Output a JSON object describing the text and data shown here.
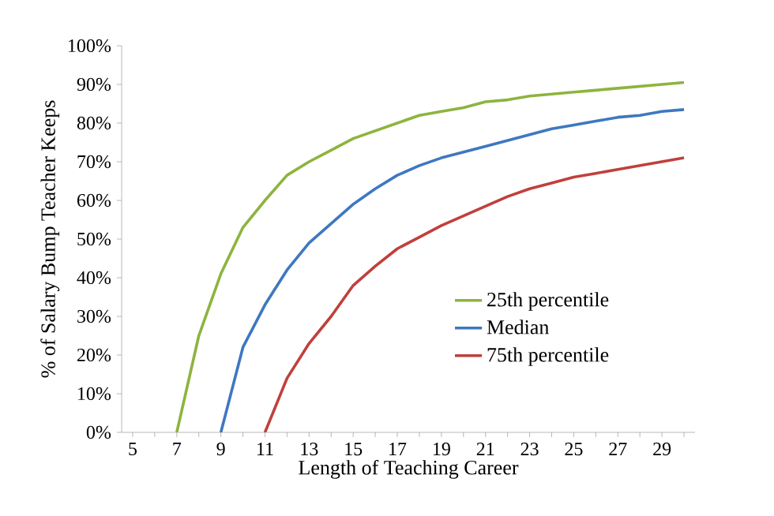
{
  "chart_data": {
    "type": "line",
    "xlabel": "Length of Teaching Career",
    "ylabel": "% of Salary Bump Teacher Keeps",
    "categories": [
      "5",
      null,
      "7",
      null,
      "9",
      null,
      "11",
      null,
      "13",
      null,
      "15",
      null,
      "17",
      null,
      "19",
      null,
      "21",
      null,
      "23",
      null,
      "25",
      null,
      "27",
      null,
      "29",
      null
    ],
    "series": [
      {
        "name": "25th percentile",
        "color": "#8db43e",
        "values": [
          null,
          null,
          0,
          25,
          41,
          53,
          60,
          66.5,
          70,
          73,
          76,
          78,
          80,
          82,
          83,
          84,
          85.5,
          86,
          87,
          87.5,
          88,
          88.5,
          89,
          89.5,
          90,
          90.5
        ]
      },
      {
        "name": "Median",
        "color": "#3e78c0",
        "values": [
          null,
          null,
          null,
          null,
          0,
          22,
          33,
          42,
          49,
          54,
          59,
          63,
          66.5,
          69,
          71,
          72.5,
          74,
          75.5,
          77,
          78.5,
          79.5,
          80.5,
          81.5,
          82,
          83,
          83.5
        ]
      },
      {
        "name": "75th percentile",
        "color": "#c0403c",
        "values": [
          null,
          null,
          null,
          null,
          null,
          null,
          0,
          14,
          23,
          30,
          38,
          43,
          47.5,
          50.5,
          53.5,
          56,
          58.5,
          61,
          63,
          64.5,
          66,
          67,
          68,
          69,
          70,
          71
        ]
      }
    ],
    "ylim": [
      0,
      100
    ],
    "yticks": [
      {
        "value": 0,
        "label": "0%"
      },
      {
        "value": 10,
        "label": "10%"
      },
      {
        "value": 20,
        "label": "20%"
      },
      {
        "value": 30,
        "label": "30%"
      },
      {
        "value": 40,
        "label": "40%"
      },
      {
        "value": 50,
        "label": "50%"
      },
      {
        "value": 60,
        "label": "60%"
      },
      {
        "value": 70,
        "label": "70%"
      },
      {
        "value": 80,
        "label": "80%"
      },
      {
        "value": 90,
        "label": "90%"
      },
      {
        "value": 100,
        "label": "100%"
      }
    ],
    "grid": false,
    "legend": "bottom right",
    "marker": "none",
    "line_style": "solid"
  }
}
